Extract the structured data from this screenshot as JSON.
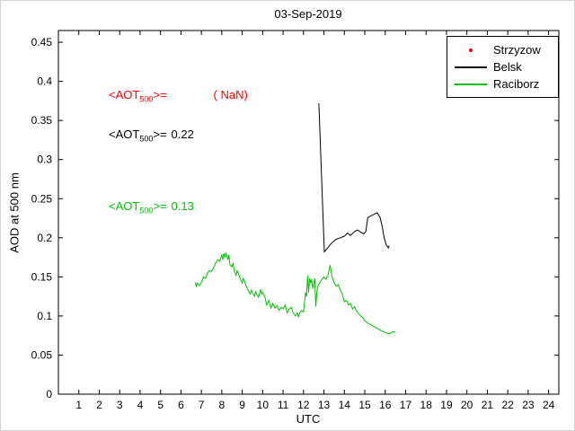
{
  "chart_data": {
    "type": "line",
    "title": "03-Sep-2019",
    "xlabel": "UTC",
    "ylabel": "AOD at 500 nm",
    "xlim": [
      0,
      24.5
    ],
    "ylim": [
      0,
      0.465
    ],
    "xticks": [
      1,
      2,
      3,
      4,
      5,
      6,
      7,
      8,
      9,
      10,
      11,
      12,
      13,
      14,
      15,
      16,
      17,
      18,
      19,
      20,
      21,
      22,
      23,
      24
    ],
    "ytick_labels": [
      "0",
      "0.05",
      "0.1",
      "0.15",
      "0.2",
      "0.25",
      "0.3",
      "0.35",
      "0.4",
      "0.45"
    ],
    "grid": false,
    "legend_position": "top-right",
    "series": [
      {
        "name": "Strzyzow",
        "color": "#ff0000",
        "style": "marker",
        "points": []
      },
      {
        "name": "Belsk",
        "color": "#000000",
        "style": "line",
        "points": [
          [
            12.75,
            0.372
          ],
          [
            13.02,
            0.182
          ],
          [
            13.15,
            0.186
          ],
          [
            13.3,
            0.191
          ],
          [
            13.45,
            0.195
          ],
          [
            13.6,
            0.198
          ],
          [
            13.8,
            0.2
          ],
          [
            14.0,
            0.202
          ],
          [
            14.15,
            0.206
          ],
          [
            14.3,
            0.203
          ],
          [
            14.5,
            0.208
          ],
          [
            14.65,
            0.21
          ],
          [
            14.8,
            0.207
          ],
          [
            14.95,
            0.205
          ],
          [
            15.05,
            0.208
          ],
          [
            15.15,
            0.226
          ],
          [
            15.3,
            0.228
          ],
          [
            15.45,
            0.23
          ],
          [
            15.6,
            0.232
          ],
          [
            15.75,
            0.226
          ],
          [
            15.85,
            0.215
          ],
          [
            15.95,
            0.2
          ],
          [
            16.05,
            0.191
          ],
          [
            16.15,
            0.187
          ],
          [
            16.2,
            0.19
          ]
        ]
      },
      {
        "name": "Raciborz",
        "color": "#00c000",
        "style": "line",
        "points": [
          [
            6.7,
            0.143
          ],
          [
            6.75,
            0.138
          ],
          [
            6.8,
            0.142
          ],
          [
            6.9,
            0.139
          ],
          [
            7.0,
            0.143
          ],
          [
            7.1,
            0.15
          ],
          [
            7.2,
            0.148
          ],
          [
            7.3,
            0.155
          ],
          [
            7.4,
            0.158
          ],
          [
            7.5,
            0.157
          ],
          [
            7.6,
            0.162
          ],
          [
            7.7,
            0.168
          ],
          [
            7.8,
            0.172
          ],
          [
            7.9,
            0.17
          ],
          [
            8.0,
            0.178
          ],
          [
            8.05,
            0.172
          ],
          [
            8.1,
            0.18
          ],
          [
            8.15,
            0.175
          ],
          [
            8.2,
            0.181
          ],
          [
            8.3,
            0.172
          ],
          [
            8.35,
            0.178
          ],
          [
            8.4,
            0.165
          ],
          [
            8.5,
            0.163
          ],
          [
            8.55,
            0.168
          ],
          [
            8.6,
            0.158
          ],
          [
            8.7,
            0.152
          ],
          [
            8.75,
            0.158
          ],
          [
            8.8,
            0.155
          ],
          [
            8.9,
            0.148
          ],
          [
            9.0,
            0.142
          ],
          [
            9.05,
            0.148
          ],
          [
            9.1,
            0.145
          ],
          [
            9.2,
            0.138
          ],
          [
            9.3,
            0.132
          ],
          [
            9.4,
            0.128
          ],
          [
            9.45,
            0.133
          ],
          [
            9.5,
            0.13
          ],
          [
            9.6,
            0.125
          ],
          [
            9.65,
            0.131
          ],
          [
            9.7,
            0.128
          ],
          [
            9.8,
            0.124
          ],
          [
            9.9,
            0.134
          ],
          [
            9.95,
            0.128
          ],
          [
            10.0,
            0.13
          ],
          [
            10.1,
            0.125
          ],
          [
            10.2,
            0.114
          ],
          [
            10.3,
            0.12
          ],
          [
            10.4,
            0.11
          ],
          [
            10.5,
            0.116
          ],
          [
            10.6,
            0.11
          ],
          [
            10.7,
            0.113
          ],
          [
            10.8,
            0.107
          ],
          [
            10.9,
            0.111
          ],
          [
            11.0,
            0.109
          ],
          [
            11.1,
            0.114
          ],
          [
            11.2,
            0.104
          ],
          [
            11.3,
            0.109
          ],
          [
            11.4,
            0.111
          ],
          [
            11.5,
            0.104
          ],
          [
            11.6,
            0.1
          ],
          [
            11.7,
            0.104
          ],
          [
            11.75,
            0.099
          ],
          [
            11.8,
            0.103
          ],
          [
            11.9,
            0.107
          ],
          [
            12.0,
            0.105
          ],
          [
            12.1,
            0.13
          ],
          [
            12.15,
            0.125
          ],
          [
            12.2,
            0.152
          ],
          [
            12.25,
            0.13
          ],
          [
            12.3,
            0.148
          ],
          [
            12.35,
            0.142
          ],
          [
            12.4,
            0.147
          ],
          [
            12.45,
            0.135
          ],
          [
            12.5,
            0.142
          ],
          [
            12.55,
            0.148
          ],
          [
            12.6,
            0.112
          ],
          [
            12.65,
            0.13
          ],
          [
            12.7,
            0.138
          ],
          [
            12.8,
            0.143
          ],
          [
            12.9,
            0.147
          ],
          [
            13.0,
            0.15
          ],
          [
            13.1,
            0.147
          ],
          [
            13.2,
            0.152
          ],
          [
            13.3,
            0.165
          ],
          [
            13.35,
            0.158
          ],
          [
            13.4,
            0.15
          ],
          [
            13.5,
            0.143
          ],
          [
            13.6,
            0.138
          ],
          [
            13.7,
            0.14
          ],
          [
            13.8,
            0.133
          ],
          [
            13.9,
            0.128
          ],
          [
            14.0,
            0.118
          ],
          [
            14.1,
            0.12
          ],
          [
            14.2,
            0.114
          ],
          [
            14.3,
            0.116
          ],
          [
            14.4,
            0.109
          ],
          [
            14.5,
            0.112
          ],
          [
            14.6,
            0.106
          ],
          [
            14.7,
            0.103
          ],
          [
            14.8,
            0.1
          ],
          [
            14.9,
            0.098
          ],
          [
            15.0,
            0.094
          ],
          [
            15.1,
            0.092
          ],
          [
            15.2,
            0.09
          ],
          [
            15.3,
            0.089
          ],
          [
            15.4,
            0.087
          ],
          [
            15.5,
            0.086
          ],
          [
            15.6,
            0.084
          ],
          [
            15.7,
            0.083
          ],
          [
            15.8,
            0.081
          ],
          [
            15.9,
            0.08
          ],
          [
            16.0,
            0.079
          ],
          [
            16.1,
            0.078
          ],
          [
            16.2,
            0.077
          ],
          [
            16.3,
            0.079
          ],
          [
            16.4,
            0.08
          ],
          [
            16.5,
            0.079
          ]
        ]
      }
    ]
  },
  "annotations": [
    {
      "prefix": "<AOT",
      "sub": "500",
      "suffix": ">=",
      "value": "( NaN)",
      "color": "#ff0000"
    },
    {
      "prefix": "<AOT",
      "sub": "500",
      "suffix": ">=",
      "value": "0.22",
      "color": "#000000"
    },
    {
      "prefix": "<AOT",
      "sub": "500",
      "suffix": ">=",
      "value": "0.13",
      "color": "#00c000"
    }
  ],
  "legend": {
    "items": [
      {
        "label": "Strzyzow"
      },
      {
        "label": "Belsk"
      },
      {
        "label": "Raciborz"
      }
    ]
  }
}
